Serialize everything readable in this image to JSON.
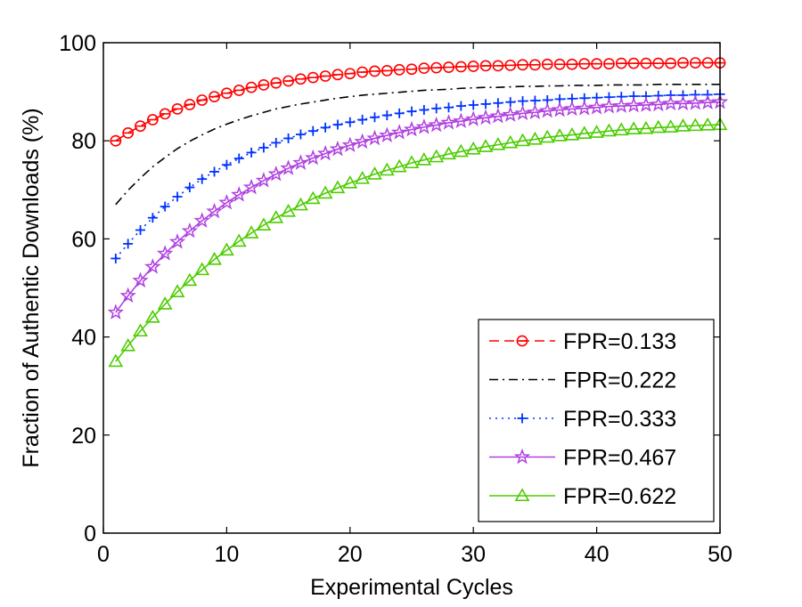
{
  "chart_data": {
    "type": "line",
    "title": "",
    "xlabel": "Experimental Cycles",
    "ylabel": "Fraction of Authentic Downloads (%)",
    "xlim": [
      0,
      50
    ],
    "ylim": [
      0,
      100
    ],
    "xticks": [
      0,
      10,
      20,
      30,
      40,
      50
    ],
    "yticks": [
      0,
      20,
      40,
      60,
      80,
      100
    ],
    "grid": false,
    "legend_position": "bottom-right",
    "x": [
      1,
      2,
      3,
      4,
      5,
      6,
      7,
      8,
      9,
      10,
      11,
      12,
      13,
      14,
      15,
      16,
      17,
      18,
      19,
      20,
      21,
      22,
      23,
      24,
      25,
      26,
      27,
      28,
      29,
      30,
      31,
      32,
      33,
      34,
      35,
      36,
      37,
      38,
      39,
      40,
      41,
      42,
      43,
      44,
      45,
      46,
      47,
      48,
      49,
      50
    ],
    "series": [
      {
        "name": "FPR=0.133",
        "color": "#ff0000",
        "line_style": "dashed",
        "marker": "circle",
        "values": [
          80.0,
          81.6,
          83.0,
          84.3,
          85.5,
          86.5,
          87.4,
          88.3,
          89.0,
          89.7,
          90.3,
          90.9,
          91.4,
          91.8,
          92.2,
          92.6,
          92.9,
          93.2,
          93.5,
          93.7,
          94.0,
          94.2,
          94.3,
          94.5,
          94.6,
          94.8,
          94.9,
          95.0,
          95.1,
          95.2,
          95.3,
          95.3,
          95.4,
          95.5,
          95.5,
          95.6,
          95.6,
          95.6,
          95.7,
          95.7,
          95.7,
          95.8,
          95.8,
          95.8,
          95.8,
          95.8,
          95.9,
          95.9,
          95.9,
          95.9
        ]
      },
      {
        "name": "FPR=0.222",
        "color": "#000000",
        "line_style": "dashdot",
        "marker": "none",
        "values": [
          67.0,
          69.9,
          72.4,
          74.7,
          76.6,
          78.4,
          79.9,
          81.2,
          82.4,
          83.4,
          84.3,
          85.1,
          85.8,
          86.5,
          87.0,
          87.5,
          87.9,
          88.3,
          88.7,
          89.0,
          89.3,
          89.5,
          89.7,
          89.9,
          90.1,
          90.3,
          90.4,
          90.5,
          90.7,
          90.8,
          90.9,
          90.9,
          91.0,
          91.1,
          91.1,
          91.2,
          91.2,
          91.3,
          91.3,
          91.3,
          91.4,
          91.4,
          91.4,
          91.4,
          91.5,
          91.5,
          91.5,
          91.5,
          91.5,
          91.5
        ]
      },
      {
        "name": "FPR=0.333",
        "color": "#0033ff",
        "line_style": "dotted",
        "marker": "plus",
        "values": [
          56.0,
          59.0,
          61.8,
          64.3,
          66.6,
          68.6,
          70.5,
          72.2,
          73.7,
          75.1,
          76.4,
          77.6,
          78.6,
          79.6,
          80.5,
          81.3,
          82.0,
          82.7,
          83.3,
          83.8,
          84.3,
          84.8,
          85.2,
          85.6,
          86.0,
          86.3,
          86.6,
          86.8,
          87.1,
          87.3,
          87.5,
          87.7,
          87.9,
          88.1,
          88.2,
          88.3,
          88.5,
          88.6,
          88.7,
          88.8,
          88.9,
          89.0,
          89.1,
          89.1,
          89.2,
          89.3,
          89.3,
          89.4,
          89.4,
          89.5
        ]
      },
      {
        "name": "FPR=0.467",
        "color": "#b040e0",
        "line_style": "solid",
        "marker": "star",
        "values": [
          45.0,
          48.4,
          51.5,
          54.3,
          57.0,
          59.4,
          61.6,
          63.7,
          65.6,
          67.4,
          69.0,
          70.5,
          71.9,
          73.2,
          74.4,
          75.5,
          76.5,
          77.4,
          78.3,
          79.1,
          79.8,
          80.5,
          81.1,
          81.7,
          82.3,
          82.8,
          83.2,
          83.7,
          84.0,
          84.4,
          84.7,
          85.0,
          85.3,
          85.6,
          85.8,
          86.1,
          86.3,
          86.5,
          86.6,
          86.8,
          87.0,
          87.1,
          87.2,
          87.3,
          87.4,
          87.6,
          87.6,
          87.7,
          87.8,
          87.9
        ]
      },
      {
        "name": "FPR=0.622",
        "color": "#4ccc00",
        "line_style": "solid",
        "marker": "triangle",
        "values": [
          35.0,
          38.2,
          41.2,
          44.0,
          46.7,
          49.2,
          51.5,
          53.7,
          55.8,
          57.7,
          59.5,
          61.2,
          62.8,
          64.3,
          65.6,
          66.9,
          68.2,
          69.3,
          70.4,
          71.4,
          72.3,
          73.2,
          74.0,
          74.7,
          75.5,
          76.1,
          76.7,
          77.3,
          77.8,
          78.3,
          78.8,
          79.2,
          79.6,
          80.0,
          80.3,
          80.7,
          81.0,
          81.2,
          81.5,
          81.7,
          82.0,
          82.2,
          82.4,
          82.5,
          82.7,
          82.8,
          83.0,
          83.1,
          83.2,
          83.3
        ]
      }
    ]
  }
}
